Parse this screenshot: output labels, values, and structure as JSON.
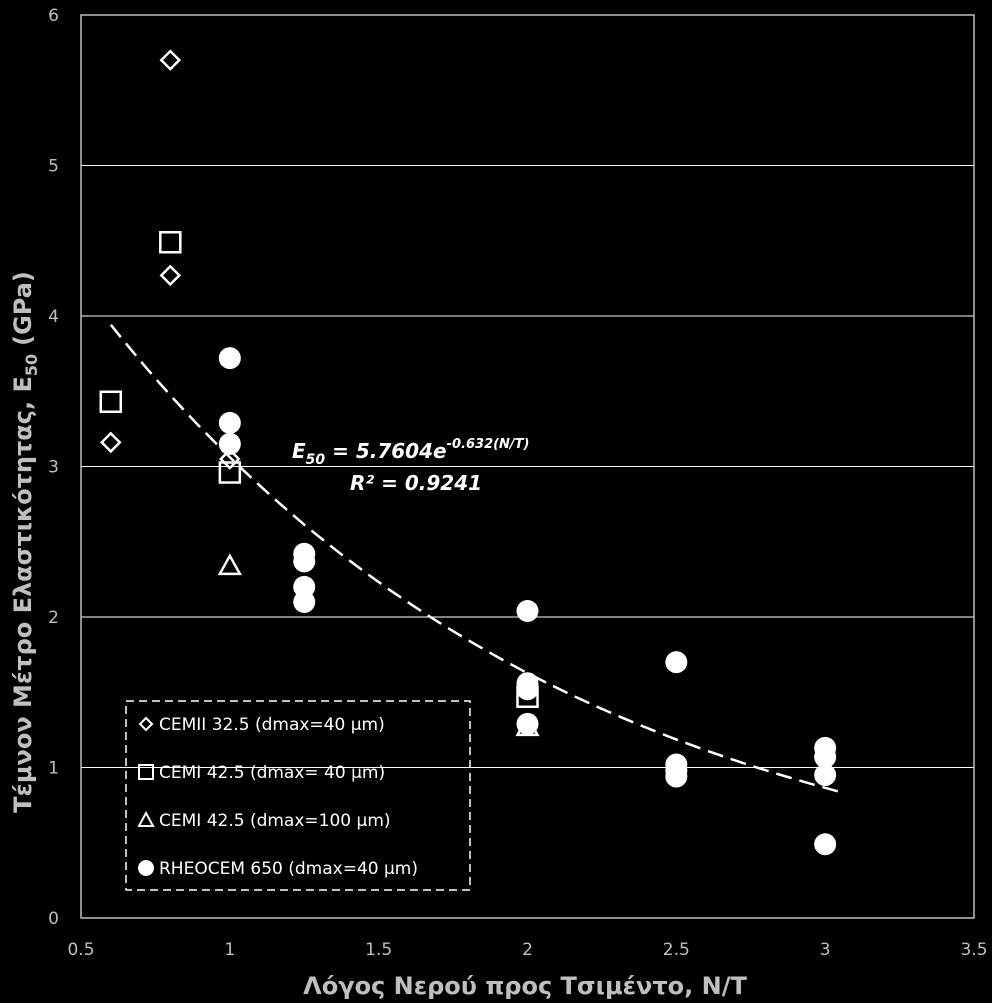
{
  "chart_data": {
    "type": "scatter",
    "title": "",
    "xlabel": "Λόγος Νερού προς Τσιμέντο, Ν/Τ",
    "ylabel_main": "Τέμνον Μέτρο Ελαστικότητας, E",
    "ylabel_sub": "50",
    "ylabel_unit": "(GPa)",
    "xlim": [
      0.5,
      3.5
    ],
    "ylim": [
      0,
      6
    ],
    "x_ticks": [
      "0.5",
      "1",
      "1.5",
      "2",
      "2.5",
      "3",
      "3.5"
    ],
    "y_ticks": [
      "0",
      "1",
      "2",
      "3",
      "4",
      "5",
      "6"
    ],
    "grid": "horizontal",
    "legend_position": "bottom-left",
    "series": [
      {
        "name": "CEMII 32.5 (dmax=40 μm)",
        "marker": "diamond",
        "points": [
          [
            0.6,
            3.16
          ],
          [
            0.8,
            5.7
          ],
          [
            0.8,
            4.27
          ],
          [
            1.0,
            3.05
          ]
        ]
      },
      {
        "name": "CEMI 42.5 (dmax= 40 μm)",
        "marker": "square",
        "points": [
          [
            0.6,
            3.43
          ],
          [
            0.8,
            4.49
          ],
          [
            1.0,
            2.96
          ],
          [
            2.0,
            1.47
          ]
        ]
      },
      {
        "name": "CEMI 42.5 (dmax=100 μm)",
        "marker": "triangle",
        "points": [
          [
            1.0,
            2.34
          ],
          [
            2.0,
            1.27
          ]
        ]
      },
      {
        "name": "RHEOCEM 650 (dmax=40 μm)",
        "marker": "circle",
        "points": [
          [
            1.0,
            3.72
          ],
          [
            1.0,
            3.29
          ],
          [
            1.0,
            3.15
          ],
          [
            1.25,
            2.42
          ],
          [
            1.25,
            2.37
          ],
          [
            1.25,
            2.2
          ],
          [
            1.25,
            2.1
          ],
          [
            2.0,
            2.04
          ],
          [
            2.0,
            1.56
          ],
          [
            2.0,
            1.52
          ],
          [
            2.0,
            1.29
          ],
          [
            2.5,
            1.7
          ],
          [
            2.5,
            1.02
          ],
          [
            2.5,
            0.98
          ],
          [
            2.5,
            0.94
          ],
          [
            3.0,
            1.13
          ],
          [
            3.0,
            1.07
          ],
          [
            3.0,
            0.95
          ],
          [
            3.0,
            0.49
          ]
        ]
      }
    ],
    "trendline": {
      "type": "exponential",
      "a": 5.7604,
      "b": -0.632,
      "x_range": [
        0.6,
        3.05
      ],
      "style": "dashed"
    },
    "annotation": {
      "equation_lhs": "E",
      "equation_sub": "50",
      "equation_mid": " = 5.7604e",
      "equation_exp": "-0.632(N/T)",
      "r2": "R² = 0.9241"
    },
    "colors": {
      "background": "#000000",
      "markers": "#ffffff",
      "text": "#bfbfbf"
    }
  }
}
